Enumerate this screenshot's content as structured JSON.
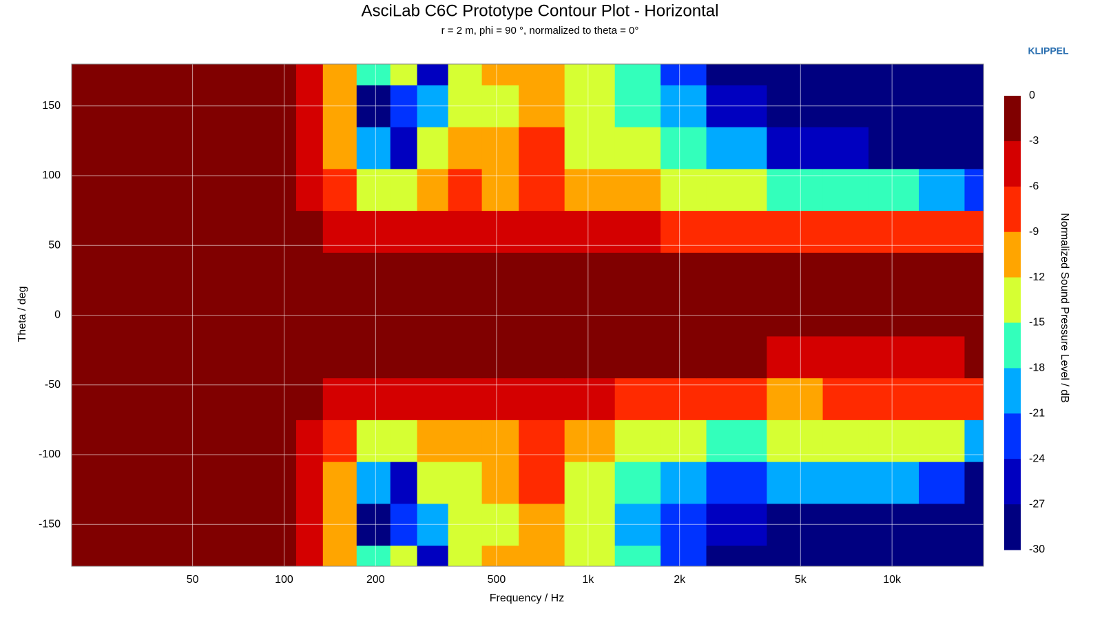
{
  "chart_data": {
    "type": "contour",
    "title": "AsciLab C6C Prototype Contour Plot - Horizontal",
    "subtitle": "r = 2 m, phi = 90 °, normalized to theta = 0°",
    "brand": "KLIPPEL",
    "x_label": "Frequency / Hz",
    "y_label": "Theta / deg",
    "colorbar_label": "Normalized Sound Pressure Level / dB",
    "x_log": true,
    "grid": true,
    "xlim": [
      20,
      20000
    ],
    "ylim": [
      -180,
      180
    ],
    "xticks": [
      50,
      100,
      200,
      500,
      {
        "value": 1000,
        "label": "1k"
      },
      {
        "value": 2000,
        "label": "2k"
      },
      {
        "value": 5000,
        "label": "5k"
      },
      {
        "value": 10000,
        "label": "10k"
      }
    ],
    "yticks": [
      150,
      100,
      50,
      0,
      -50,
      -100,
      -150
    ],
    "levels": [
      0,
      -3,
      -6,
      -9,
      -12,
      -15,
      -18,
      -21,
      -24,
      -27,
      -30
    ],
    "colors": [
      "#800000",
      "#d40000",
      "#ff2a00",
      "#ffa500",
      "#d6ff33",
      "#33ffbb",
      "#00aaff",
      "#0033ff",
      "#0000c0",
      "#000080"
    ],
    "x": [
      20,
      30,
      50,
      70,
      100,
      120,
      150,
      200,
      250,
      300,
      400,
      500,
      700,
      1000,
      1500,
      2000,
      3000,
      5000,
      7000,
      10000,
      15000,
      20000
    ],
    "y": [
      -180,
      -150,
      -120,
      -90,
      -60,
      -30,
      0,
      30,
      60,
      90,
      120,
      150,
      180
    ],
    "z": [
      [
        -1,
        -1,
        -1,
        -1,
        -1,
        -5,
        -10,
        -15,
        -14,
        -25,
        -12,
        -11,
        -10,
        -13,
        -17,
        -22,
        -27,
        -29,
        -30,
        -30,
        -30,
        -30
      ],
      [
        -1,
        -1,
        -1,
        -1,
        -1,
        -5,
        -10,
        -27,
        -22,
        -20,
        -13,
        -12,
        -10,
        -14,
        -18,
        -23,
        -26,
        -27,
        -28,
        -28,
        -30,
        -30
      ],
      [
        -1,
        -1,
        -1,
        -1,
        -1,
        -5,
        -10,
        -20,
        -24,
        -14,
        -12,
        -11,
        -8,
        -13,
        -16,
        -19,
        -22,
        -20,
        -19,
        -20,
        -22,
        -30
      ],
      [
        -1,
        -1,
        -1,
        -1,
        -1,
        -4,
        -8,
        -12,
        -13,
        -10,
        -9,
        -11,
        -8,
        -10,
        -12,
        -14,
        -15,
        -14,
        -12,
        -13,
        -14,
        -18
      ],
      [
        -1,
        -1,
        -1,
        -1,
        -1,
        -2,
        -4,
        -5,
        -5,
        -5,
        -4,
        -3,
        -5,
        -5,
        -6,
        -7,
        -8,
        -9,
        -8,
        -7,
        -6,
        -6
      ],
      [
        -1,
        -1,
        -1,
        -1,
        -1,
        -1,
        -1,
        -1,
        -1,
        -1,
        -1,
        -1,
        -1,
        -1,
        -1,
        -2,
        -2,
        -3,
        -3,
        -3,
        -3,
        -2
      ],
      [
        -1,
        -1,
        -1,
        -1,
        -1,
        -1,
        -1,
        -1,
        -1,
        -1,
        -1,
        -1,
        -1,
        -1,
        -1,
        -1,
        -1,
        -1,
        -1,
        -1,
        -1,
        -1
      ],
      [
        -1,
        -1,
        -1,
        -1,
        -1,
        -1,
        -1,
        -1,
        -1,
        -1,
        -1,
        -1,
        -1,
        -1,
        -1,
        -1,
        -2,
        -2,
        -2,
        -2,
        -2,
        -2
      ],
      [
        -1,
        -1,
        -1,
        -1,
        -1,
        -2,
        -4,
        -5,
        -5,
        -4,
        -4,
        -3,
        -4,
        -5,
        -5,
        -6,
        -7,
        -8,
        -7,
        -6,
        -6,
        -8
      ],
      [
        -1,
        -1,
        -1,
        -1,
        -1,
        -4,
        -8,
        -12,
        -13,
        -10,
        -8,
        -10,
        -8,
        -9,
        -11,
        -12,
        -14,
        -17,
        -16,
        -15,
        -18,
        -22
      ],
      [
        -1,
        -1,
        -1,
        -1,
        -1,
        -5,
        -10,
        -20,
        -24,
        -14,
        -11,
        -10,
        -8,
        -12,
        -14,
        -17,
        -20,
        -24,
        -26,
        -28,
        -30,
        -30
      ],
      [
        -1,
        -1,
        -1,
        -1,
        -1,
        -5,
        -10,
        -27,
        -22,
        -20,
        -13,
        -12,
        -9,
        -13,
        -16,
        -20,
        -25,
        -28,
        -29,
        -30,
        -30,
        -30
      ],
      [
        -1,
        -1,
        -1,
        -1,
        -1,
        -5,
        -10,
        -15,
        -14,
        -25,
        -12,
        -11,
        -10,
        -13,
        -17,
        -22,
        -27,
        -29,
        -30,
        -30,
        -30,
        -30
      ]
    ]
  }
}
